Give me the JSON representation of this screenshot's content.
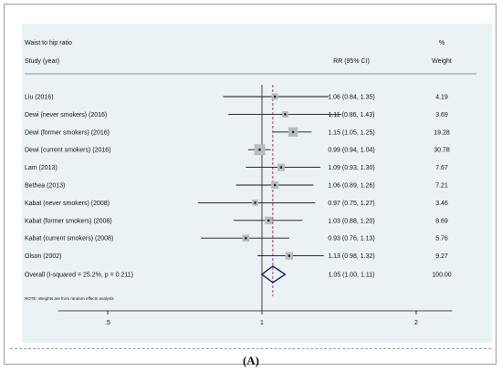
{
  "chart_data": {
    "type": "forest",
    "title": "Waist to hip ratio",
    "columns": {
      "study": "Study (year)",
      "rr": "RR (95% CI)",
      "weight_pct": "%",
      "weight": "Weight"
    },
    "studies": [
      {
        "label": "Liu (2016)",
        "rr": 1.06,
        "lo": 0.84,
        "hi": 1.35,
        "ci_text": "1.06 (0.84, 1.35)",
        "weight": 4.19,
        "weight_text": "4.19"
      },
      {
        "label": "Dewi (never smokers) (2016)",
        "rr": 1.11,
        "lo": 0.86,
        "hi": 1.43,
        "ci_text": "1.11 (0.86, 1.43)",
        "weight": 3.69,
        "weight_text": "3.69"
      },
      {
        "label": "Dewi (former smokers) (2016)",
        "rr": 1.15,
        "lo": 1.05,
        "hi": 1.25,
        "ci_text": "1.15 (1.05, 1.25)",
        "weight": 19.28,
        "weight_text": "19.28"
      },
      {
        "label": "Dewi (current smokers) (2016)",
        "rr": 0.99,
        "lo": 0.94,
        "hi": 1.04,
        "ci_text": "0.99 (0.94, 1.04)",
        "weight": 30.78,
        "weight_text": "30.78"
      },
      {
        "label": "Lam (2013)",
        "rr": 1.09,
        "lo": 0.93,
        "hi": 1.3,
        "ci_text": "1.09 (0.93, 1.30)",
        "weight": 7.67,
        "weight_text": "7.67"
      },
      {
        "label": "Bethea (2013)",
        "rr": 1.06,
        "lo": 0.89,
        "hi": 1.26,
        "ci_text": "1.06 (0.89, 1.26)",
        "weight": 7.21,
        "weight_text": "7.21"
      },
      {
        "label": "Kabat (never smokers) (2008)",
        "rr": 0.97,
        "lo": 0.75,
        "hi": 1.27,
        "ci_text": "0.97 (0.75, 1.27)",
        "weight": 3.46,
        "weight_text": "3.46"
      },
      {
        "label": "Kabat (former smokers) (2008)",
        "rr": 1.03,
        "lo": 0.88,
        "hi": 1.2,
        "ci_text": "1.03 (0.88, 1.20)",
        "weight": 8.69,
        "weight_text": "8.69"
      },
      {
        "label": "Kabat (current smokers) (2008)",
        "rr": 0.93,
        "lo": 0.76,
        "hi": 1.13,
        "ci_text": "0.93 (0.76, 1.13)",
        "weight": 5.76,
        "weight_text": "5.76"
      },
      {
        "label": "Olson (2002)",
        "rr": 1.13,
        "lo": 0.98,
        "hi": 1.32,
        "ci_text": "1.13 (0.98, 1.32)",
        "weight": 9.27,
        "weight_text": "9.27"
      }
    ],
    "overall": {
      "label": "Overall  (I-squared = 25.2%, p = 0.211)",
      "rr": 1.05,
      "lo": 1.0,
      "hi": 1.11,
      "ci_text": "1.05 (1.00, 1.11)",
      "weight": 100.0,
      "weight_text": "100.00"
    },
    "note": "NOTE: Weights are from random effects analysis",
    "x_scale": "log",
    "x_ticks": [
      {
        "value": 0.5,
        "label": ".5"
      },
      {
        "value": 1,
        "label": "1"
      },
      {
        "value": 2,
        "label": "2"
      }
    ],
    "null_line": 1,
    "colors": {
      "panel": "#eaf2f3",
      "marker_box": "#b8bcbf",
      "overall_line": "#a0234a",
      "diamond": "#1f1a6e"
    }
  },
  "caption": "(A)"
}
